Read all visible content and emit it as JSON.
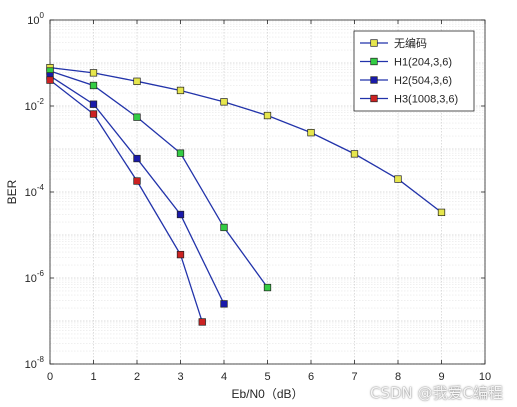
{
  "chart_data": {
    "type": "line",
    "title": "",
    "xlabel": "Eb/N0（dB）",
    "ylabel": "BER",
    "xlim": [
      0,
      10
    ],
    "ylim": [
      1e-08,
      1
    ],
    "yscale": "log",
    "grid": true,
    "minor_grid": true,
    "legend_position": "top-right",
    "x_ticks": [
      "0",
      "1",
      "2",
      "3",
      "4",
      "5",
      "6",
      "7",
      "8",
      "9",
      "10"
    ],
    "y_ticks": [
      {
        "base": "10",
        "exp": "0"
      },
      {
        "base": "10",
        "exp": "-2"
      },
      {
        "base": "10",
        "exp": "-4"
      },
      {
        "base": "10",
        "exp": "-6"
      },
      {
        "base": "10",
        "exp": "-8"
      }
    ],
    "series": [
      {
        "name": "无编码",
        "color": "#e6e64d",
        "line_color": "#2233aa",
        "x": [
          0,
          1,
          2,
          3,
          4,
          5,
          6,
          7,
          8,
          9
        ],
        "y": [
          0.078,
          0.059,
          0.0375,
          0.023,
          0.0125,
          0.006,
          0.0024,
          0.00077,
          0.0002,
          3.36e-05
        ]
      },
      {
        "name": "H1(204,3,6)",
        "color": "#33cc44",
        "line_color": "#2233aa",
        "x": [
          0,
          1,
          2,
          3,
          4,
          5
        ],
        "y": [
          0.065,
          0.03,
          0.0055,
          0.0008,
          1.5e-05,
          6e-07
        ]
      },
      {
        "name": "H2(504,3,6)",
        "color": "#1a1aaa",
        "line_color": "#2233aa",
        "x": [
          0,
          1,
          2,
          3,
          4
        ],
        "y": [
          0.05,
          0.011,
          0.0006,
          3e-05,
          2.5e-07
        ]
      },
      {
        "name": "H3(1008,3,6)",
        "color": "#cc2222",
        "line_color": "#2233aa",
        "x": [
          0,
          1,
          2,
          3,
          3.5
        ],
        "y": [
          0.04,
          0.0065,
          0.00018,
          3.5e-06,
          9.5e-08
        ]
      }
    ]
  },
  "watermark": "CSDN @我爱C编程"
}
